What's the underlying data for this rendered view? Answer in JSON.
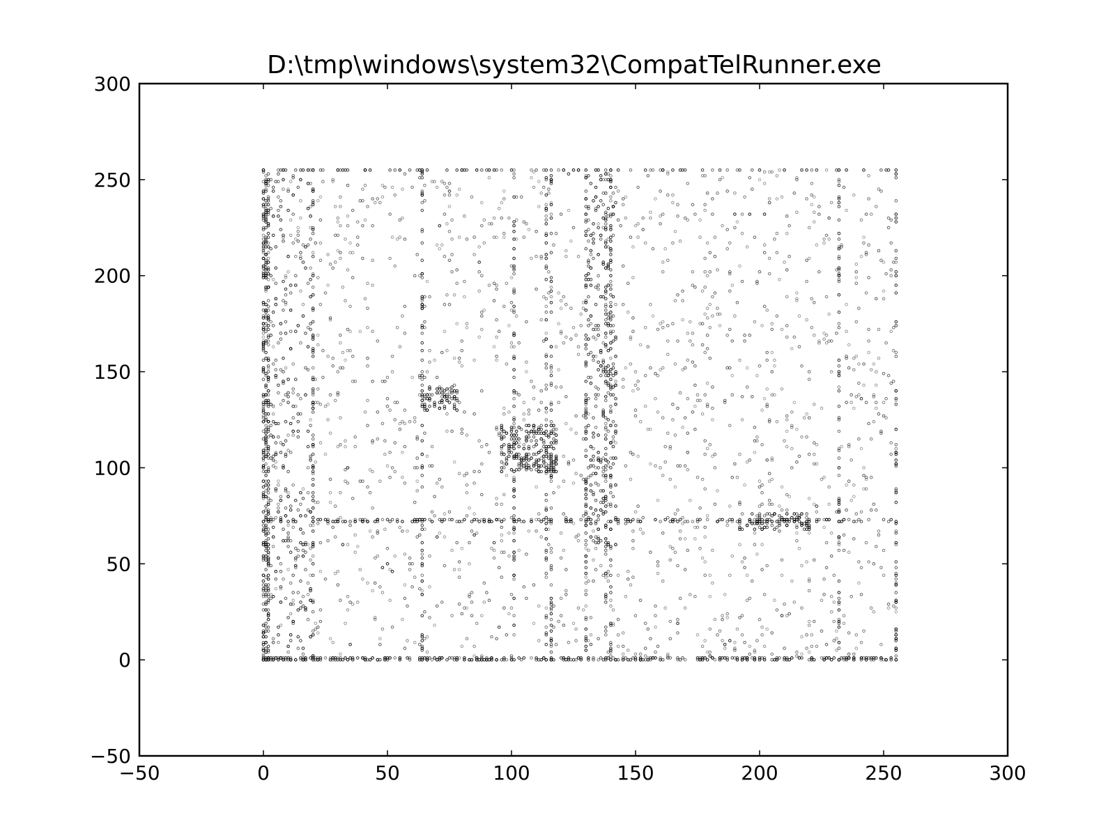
{
  "chart_data": {
    "type": "scatter",
    "title": "D:\\tmp\\windows\\system32\\CompatTelRunner.exe",
    "xlabel": "",
    "ylabel": "",
    "xlim": [
      -50,
      300
    ],
    "ylim": [
      -50,
      300
    ],
    "xticks": [
      -50,
      0,
      50,
      100,
      150,
      200,
      250,
      300
    ],
    "yticks": [
      -50,
      0,
      50,
      100,
      150,
      200,
      250,
      300
    ],
    "xtick_labels": [
      "−50",
      "0",
      "50",
      "100",
      "150",
      "200",
      "250",
      "300"
    ],
    "ytick_labels": [
      "−50",
      "0",
      "50",
      "100",
      "150",
      "200",
      "250",
      "300"
    ],
    "grid": false,
    "marker": "hollow-circle",
    "marker_color": "#000000",
    "point_domain": [
      0,
      255
    ],
    "dense_rows": [
      0,
      1,
      72,
      73,
      255
    ],
    "dense_columns": [
      0,
      1,
      2,
      20,
      64,
      101,
      114,
      116,
      130,
      138,
      140,
      232,
      255
    ],
    "clusters": [
      {
        "x": [
          96,
          118
        ],
        "y": [
          98,
          122
        ],
        "note": "dense block"
      },
      {
        "x": [
          64,
          78
        ],
        "y": [
          130,
          142
        ],
        "note": "dense block"
      },
      {
        "x": [
          130,
          142
        ],
        "y": [
          60,
          256
        ],
        "note": "vertical band"
      },
      {
        "x": [
          192,
          220
        ],
        "y": [
          68,
          76
        ],
        "note": "horizontal band"
      },
      {
        "x": [
          0,
          20
        ],
        "y": [
          0,
          256
        ],
        "note": "left band"
      }
    ],
    "points": [
      [
        0,
        0
      ],
      [
        1,
        0
      ],
      [
        2,
        0
      ],
      [
        4,
        0
      ],
      [
        8,
        0
      ],
      [
        16,
        0
      ],
      [
        32,
        0
      ],
      [
        64,
        0
      ],
      [
        100,
        0
      ],
      [
        128,
        0
      ],
      [
        150,
        0
      ],
      [
        184,
        0
      ],
      [
        200,
        0
      ],
      [
        232,
        0
      ],
      [
        255,
        0
      ],
      [
        0,
        1
      ],
      [
        1,
        1
      ],
      [
        2,
        1
      ],
      [
        3,
        1
      ],
      [
        5,
        1
      ],
      [
        10,
        1
      ],
      [
        72,
        1
      ],
      [
        116,
        1
      ],
      [
        139,
        1
      ],
      [
        185,
        1
      ],
      [
        0,
        72
      ],
      [
        10,
        72
      ],
      [
        20,
        72
      ],
      [
        40,
        72
      ],
      [
        60,
        72
      ],
      [
        72,
        72
      ],
      [
        101,
        72
      ],
      [
        130,
        72
      ],
      [
        192,
        72
      ],
      [
        200,
        72
      ],
      [
        210,
        72
      ],
      [
        220,
        72
      ],
      [
        232,
        72
      ],
      [
        255,
        72
      ],
      [
        0,
        255
      ],
      [
        8,
        255
      ],
      [
        16,
        255
      ],
      [
        32,
        255
      ],
      [
        64,
        255
      ],
      [
        100,
        255
      ],
      [
        130,
        255
      ],
      [
        140,
        255
      ],
      [
        200,
        255
      ],
      [
        232,
        255
      ],
      [
        255,
        255
      ],
      [
        0,
        100
      ],
      [
        0,
        150
      ],
      [
        0,
        200
      ],
      [
        0,
        232
      ],
      [
        1,
        120
      ],
      [
        2,
        60
      ],
      [
        20,
        100
      ],
      [
        20,
        200
      ],
      [
        64,
        50
      ],
      [
        64,
        100
      ],
      [
        64,
        185
      ],
      [
        101,
        32
      ],
      [
        101,
        110
      ],
      [
        114,
        106
      ],
      [
        116,
        32
      ],
      [
        116,
        100
      ],
      [
        116,
        10
      ],
      [
        130,
        200
      ],
      [
        130,
        232
      ],
      [
        138,
        80
      ],
      [
        138,
        150
      ],
      [
        140,
        68
      ],
      [
        140,
        200
      ],
      [
        140,
        220
      ],
      [
        232,
        20
      ],
      [
        232,
        100
      ],
      [
        232,
        150
      ],
      [
        232,
        200
      ],
      [
        255,
        16
      ],
      [
        255,
        120
      ],
      [
        255,
        140
      ],
      [
        255,
        200
      ],
      [
        255,
        232
      ],
      [
        50,
        50
      ],
      [
        48,
        48
      ],
      [
        52,
        46
      ],
      [
        32,
        60
      ],
      [
        34,
        100
      ],
      [
        70,
        64
      ],
      [
        85,
        65
      ],
      [
        190,
        232
      ],
      [
        196,
        232
      ],
      [
        202,
        232
      ],
      [
        188,
        10
      ],
      [
        186,
        8
      ],
      [
        180,
        2
      ]
    ]
  }
}
